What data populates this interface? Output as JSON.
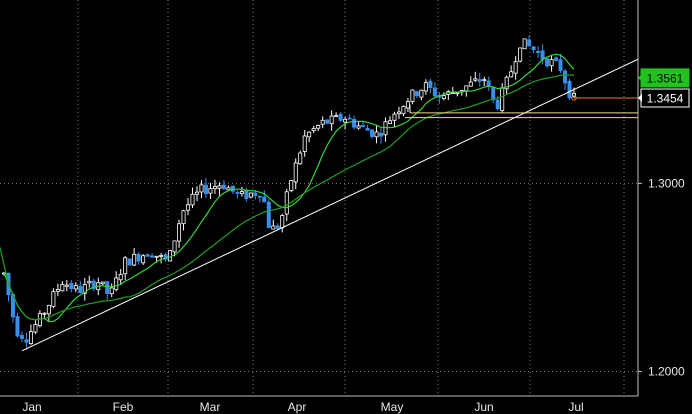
{
  "chart_data": {
    "type": "candlestick",
    "x_tick_labels": [
      "Jan",
      "Feb",
      "Mar",
      "Apr",
      "May",
      "Jun",
      "Jul"
    ],
    "y_tick_labels": [
      "1.3000",
      "1.2000"
    ],
    "ylim": [
      1.187,
      1.3975
    ],
    "grid": true,
    "badges": [
      {
        "value": "1.3561",
        "color": "#22c21e"
      },
      {
        "value": "1.3454",
        "color": "#ffffff"
      }
    ],
    "colors": {
      "up_candle": "#ffffff",
      "down_candle": "#3a8ee8",
      "ma_fast": "#39d23a",
      "ma_slow": "#1f9e1f",
      "trendline": "#ffffff",
      "support_lines": "#f2dd7a",
      "price_marker": "#e08040",
      "grid": "#777777"
    },
    "trendline": {
      "start": {
        "x": "Jan",
        "y": 1.211
      },
      "end": {
        "x": "Jul+",
        "y": 1.366
      }
    },
    "support_levels": [
      1.3375,
      1.335
    ],
    "price_marker_level": 1.3454,
    "monthly_closes": [
      {
        "month": "Jan",
        "open": 1.255,
        "close": 1.225
      },
      {
        "month": "Feb",
        "open": 1.235,
        "close": 1.265
      },
      {
        "month": "Mar",
        "open": 1.268,
        "close": 1.296
      },
      {
        "month": "Apr",
        "open": 1.29,
        "close": 1.332
      },
      {
        "month": "May",
        "open": 1.33,
        "close": 1.342
      },
      {
        "month": "Jun",
        "open": 1.345,
        "close": 1.368
      },
      {
        "month": "Jul",
        "open": 1.36,
        "close": 1.345
      }
    ]
  }
}
